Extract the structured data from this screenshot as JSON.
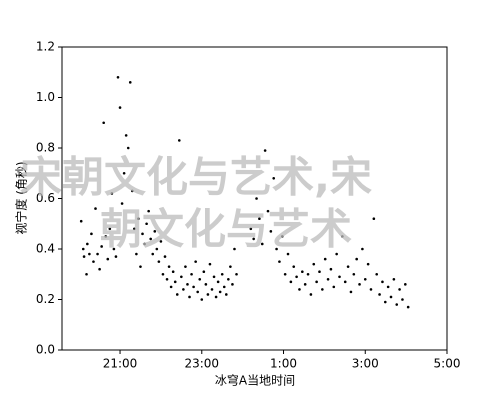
{
  "chart_data": {
    "type": "scatter",
    "xlabel": "冰穹A当地时间",
    "ylabel": "视宁度 (角秒)",
    "watermark": [
      "宋朝文化与艺术,宋",
      "朝文化与艺术"
    ],
    "color": "#000000",
    "xlim": [
      19.58,
      29
    ],
    "xticks": [
      {
        "value": 21,
        "label": "21:00"
      },
      {
        "value": 23,
        "label": "23:00"
      },
      {
        "value": 25,
        "label": "1:00"
      },
      {
        "value": 27,
        "label": "3:00"
      },
      {
        "value": 29,
        "label": "5:00"
      }
    ],
    "ylim": [
      0,
      1.2
    ],
    "yticks": [
      {
        "value": 0,
        "label": "0.0"
      },
      0.2,
      0.4,
      0.6,
      0.8,
      {
        "value": 1,
        "label": "1.0"
      },
      1.2
    ],
    "x": [
      20.05,
      20.1,
      20.12,
      20.18,
      20.2,
      20.25,
      20.3,
      20.35,
      20.4,
      20.45,
      20.5,
      20.55,
      20.6,
      20.65,
      20.7,
      20.75,
      20.8,
      20.85,
      20.9,
      20.95,
      21.0,
      21.05,
      21.1,
      21.15,
      21.2,
      21.25,
      21.3,
      21.35,
      21.4,
      21.45,
      21.5,
      21.55,
      21.6,
      21.65,
      21.7,
      21.75,
      21.8,
      21.85,
      21.9,
      21.95,
      22.0,
      22.05,
      22.1,
      22.15,
      22.2,
      22.25,
      22.3,
      22.35,
      22.4,
      22.45,
      22.5,
      22.55,
      22.6,
      22.65,
      22.7,
      22.75,
      22.8,
      22.85,
      22.9,
      22.95,
      23.0,
      23.05,
      23.1,
      23.15,
      23.2,
      23.25,
      23.3,
      23.35,
      23.4,
      23.45,
      23.5,
      23.55,
      23.6,
      23.65,
      23.7,
      23.75,
      23.8,
      23.85,
      24.2,
      24.27,
      24.34,
      24.41,
      24.48,
      24.55,
      24.62,
      24.69,
      24.76,
      24.83,
      24.9,
      24.97,
      25.04,
      25.11,
      25.18,
      25.25,
      25.32,
      25.39,
      25.46,
      25.53,
      25.6,
      25.67,
      25.74,
      25.81,
      25.88,
      25.95,
      26.02,
      26.09,
      26.16,
      26.23,
      26.3,
      26.37,
      26.44,
      26.51,
      26.58,
      26.65,
      26.72,
      26.79,
      26.86,
      26.93,
      27.0,
      27.07,
      27.14,
      27.21,
      27.28,
      27.35,
      27.42,
      27.49,
      27.56,
      27.63,
      27.7,
      27.77,
      27.84,
      27.91,
      27.98,
      28.05
    ],
    "values": [
      0.51,
      0.4,
      0.37,
      0.3,
      0.42,
      0.38,
      0.46,
      0.35,
      0.56,
      0.38,
      0.32,
      0.41,
      0.9,
      0.45,
      0.36,
      0.48,
      0.62,
      0.4,
      0.37,
      1.08,
      0.96,
      0.58,
      0.7,
      0.85,
      0.8,
      1.06,
      0.63,
      0.48,
      0.38,
      0.52,
      0.33,
      0.46,
      0.42,
      0.5,
      0.55,
      0.44,
      0.38,
      0.47,
      0.4,
      0.35,
      0.43,
      0.3,
      0.37,
      0.28,
      0.33,
      0.25,
      0.31,
      0.27,
      0.22,
      0.83,
      0.29,
      0.24,
      0.33,
      0.26,
      0.21,
      0.3,
      0.25,
      0.35,
      0.23,
      0.28,
      0.2,
      0.31,
      0.26,
      0.22,
      0.34,
      0.24,
      0.29,
      0.21,
      0.27,
      0.23,
      0.3,
      0.25,
      0.22,
      0.28,
      0.33,
      0.26,
      0.4,
      0.3,
      0.48,
      0.44,
      0.6,
      0.52,
      0.42,
      0.79,
      0.55,
      0.47,
      0.68,
      0.4,
      0.35,
      0.45,
      0.3,
      0.38,
      0.27,
      0.33,
      0.29,
      0.24,
      0.31,
      0.26,
      0.3,
      0.22,
      0.34,
      0.27,
      0.31,
      0.24,
      0.36,
      0.28,
      0.32,
      0.25,
      0.38,
      0.29,
      0.45,
      0.27,
      0.33,
      0.23,
      0.3,
      0.36,
      0.26,
      0.4,
      0.28,
      0.34,
      0.24,
      0.52,
      0.3,
      0.22,
      0.27,
      0.19,
      0.25,
      0.21,
      0.28,
      0.18,
      0.24,
      0.2,
      0.26,
      0.17
    ]
  }
}
